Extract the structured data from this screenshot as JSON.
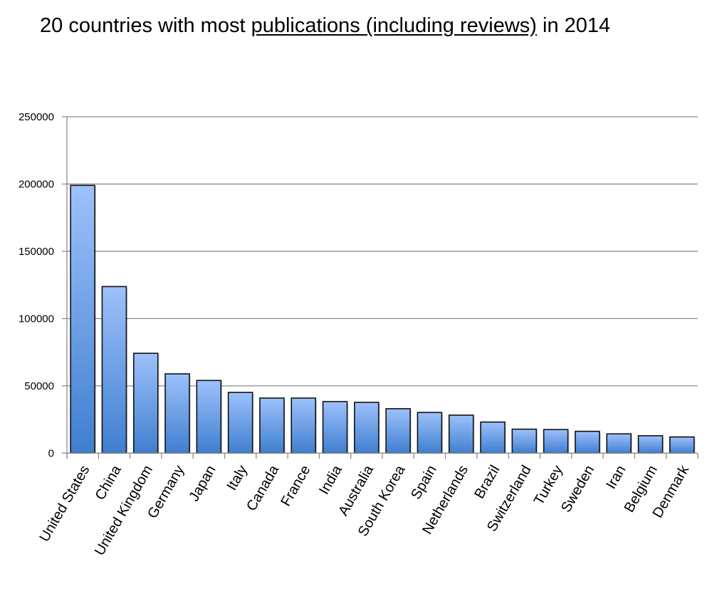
{
  "chart_data": {
    "type": "bar",
    "title": {
      "prefix": "20 countries with most ",
      "underlined": "publications (including reviews)",
      "suffix": " in 2014"
    },
    "xlabel": "",
    "ylabel": "",
    "ylim": [
      0,
      250000
    ],
    "yticks": [
      0,
      50000,
      100000,
      150000,
      200000,
      250000
    ],
    "grid": true,
    "legend": "none",
    "bar_color": "#6a9fe6",
    "bar_color_top": "#9dc1fb",
    "bar_color_bottom": "#3f7fd0",
    "categories": [
      "United States",
      "China",
      "United Kingdom",
      "Germany",
      "Japan",
      "Italy",
      "Canada",
      "France",
      "India",
      "Australia",
      "South Korea",
      "Spain",
      "Netherlands",
      "Brazil",
      "Switzerland",
      "Turkey",
      "Sweden",
      "Iran",
      "Belgium",
      "Denmark"
    ],
    "values": [
      199000,
      123800,
      74200,
      58900,
      54000,
      45100,
      40900,
      40900,
      38300,
      37700,
      33000,
      30200,
      28200,
      23100,
      17800,
      17500,
      16200,
      14300,
      12900,
      12000
    ]
  }
}
